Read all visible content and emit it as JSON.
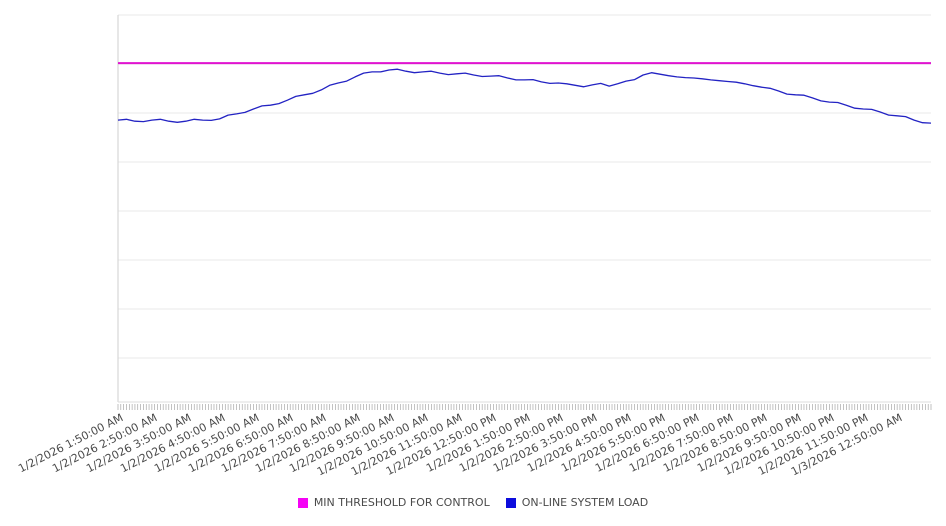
{
  "chart_data": {
    "type": "line",
    "title": "",
    "xlabel": "",
    "ylabel": "",
    "grid": "horizontal-only",
    "y_axis_labels_visible": false,
    "ylim": [
      0,
      1
    ],
    "x_axis": {
      "hours_range": [
        0,
        24
      ],
      "minor_tick_interval_minutes": 5,
      "labeled_tick_hours_start": 0,
      "labeled_tick_interval_hours": 1,
      "tick_labels": [
        "1/2/2026 1:50:00 AM",
        "1/2/2026 2:50:00 AM",
        "1/2/2026 3:50:00 AM",
        "1/2/2026 4:50:00 AM",
        "1/2/2026 5:50:00 AM",
        "1/2/2026 6:50:00 AM",
        "1/2/2026 7:50:00 AM",
        "1/2/2026 8:50:00 AM",
        "1/2/2026 9:50:00 AM",
        "1/2/2026 10:50:00 AM",
        "1/2/2026 11:50:00 AM",
        "1/2/2026 12:50:00 PM",
        "1/2/2026 1:50:00 PM",
        "1/2/2026 2:50:00 PM",
        "1/2/2026 3:50:00 PM",
        "1/2/2026 4:50:00 PM",
        "1/2/2026 5:50:00 PM",
        "1/2/2026 6:50:00 PM",
        "1/2/2026 7:50:00 PM",
        "1/2/2026 8:50:00 PM",
        "1/2/2026 9:50:00 PM",
        "1/2/2026 10:50:00 PM",
        "1/2/2026 11:50:00 PM",
        "1/3/2026 12:50:00 AM"
      ]
    },
    "series": [
      {
        "name": "MIN THRESHOLD FOR CONTROL",
        "style": "horizontal-threshold-line",
        "color": "#e013d0",
        "line_width": 2,
        "value": 0.874
      },
      {
        "name": "ON-LINE SYSTEM LOAD",
        "style": "line",
        "color": "#2323c3",
        "line_width": 1.3,
        "x_start_hour": 0,
        "x_step_hours": 0.25,
        "values": [
          0.725,
          0.727,
          0.722,
          0.721,
          0.725,
          0.727,
          0.722,
          0.719,
          0.722,
          0.727,
          0.725,
          0.724,
          0.728,
          0.738,
          0.741,
          0.745,
          0.754,
          0.762,
          0.764,
          0.768,
          0.777,
          0.787,
          0.791,
          0.795,
          0.804,
          0.816,
          0.822,
          0.827,
          0.838,
          0.848,
          0.851,
          0.851,
          0.856,
          0.858,
          0.853,
          0.849,
          0.851,
          0.853,
          0.848,
          0.844,
          0.846,
          0.848,
          0.843,
          0.839,
          0.84,
          0.841,
          0.835,
          0.83,
          0.83,
          0.831,
          0.825,
          0.821,
          0.822,
          0.82,
          0.816,
          0.812,
          0.817,
          0.821,
          0.814,
          0.82,
          0.827,
          0.831,
          0.843,
          0.849,
          0.845,
          0.841,
          0.838,
          0.836,
          0.835,
          0.833,
          0.83,
          0.828,
          0.826,
          0.824,
          0.82,
          0.815,
          0.811,
          0.808,
          0.801,
          0.793,
          0.791,
          0.79,
          0.783,
          0.775,
          0.772,
          0.771,
          0.764,
          0.756,
          0.754,
          0.753,
          0.746,
          0.738,
          0.736,
          0.734,
          0.725,
          0.718,
          0.717
        ]
      }
    ],
    "legend": {
      "position": "bottom-center",
      "items": [
        {
          "label": "MIN THRESHOLD FOR CONTROL",
          "color": "#f503f5"
        },
        {
          "label": "ON-LINE SYSTEM LOAD",
          "color": "#0d0ddd"
        }
      ]
    },
    "colors": {
      "background": "#ffffff",
      "grid": "#e9e9e9",
      "left_axis": "#cfcfcf",
      "baseline": "#dedede",
      "minor_tick": "#9a9a9a",
      "tick_label_text": "#4a4a4a",
      "legend_text": "#4a4a4a"
    }
  }
}
